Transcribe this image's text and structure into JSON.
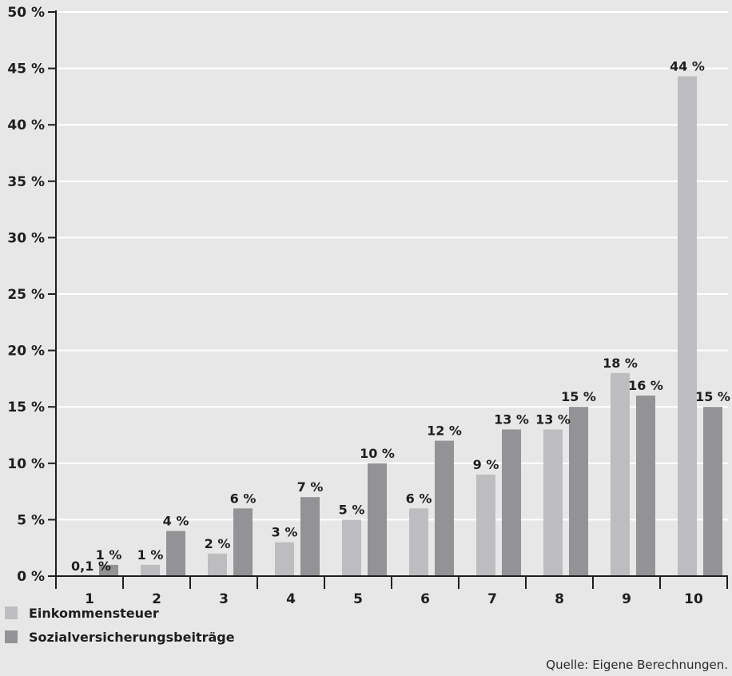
{
  "chart_data": {
    "type": "bar",
    "categories": [
      "1",
      "2",
      "3",
      "4",
      "5",
      "6",
      "7",
      "8",
      "9",
      "10"
    ],
    "series": [
      {
        "name": "Einkommensteuer",
        "values": [
          0.1,
          1,
          2,
          3,
          5,
          6,
          9,
          13,
          18,
          44.3
        ],
        "labels": [
          "0,1 %",
          "1 %",
          "2 %",
          "3 %",
          "5 %",
          "6 %",
          "9 %",
          "13 %",
          "18 %",
          "44 %"
        ],
        "color": "#bdbdbf"
      },
      {
        "name": "Sozialversicherungsbeiträge",
        "values": [
          1,
          4,
          6,
          7,
          10,
          12,
          13,
          15,
          16,
          15
        ],
        "labels": [
          "1 %",
          "4 %",
          "6 %",
          "7 %",
          "10 %",
          "12 %",
          "13 %",
          "15 %",
          "16 %",
          "15 %"
        ],
        "color": "#939395"
      }
    ],
    "yticks": [
      0,
      5,
      10,
      15,
      20,
      25,
      30,
      35,
      40,
      45,
      50
    ],
    "ytick_labels": [
      "0 %",
      "5 %",
      "10 %",
      "15 %",
      "20 %",
      "25 %",
      "30 %",
      "35 %",
      "40 %",
      "45 %",
      "50 %"
    ],
    "ylim": [
      0,
      50
    ],
    "grid": true,
    "legend_position": "bottom-left",
    "source": "Quelle: Eigene Berechnungen."
  }
}
